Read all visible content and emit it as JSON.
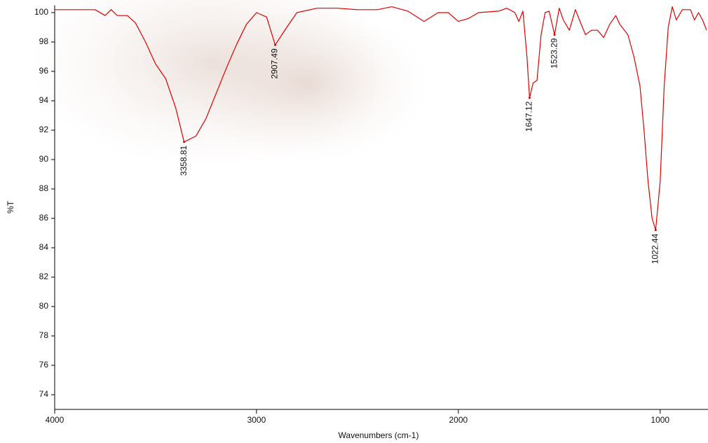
{
  "chart_data": {
    "type": "line",
    "x_label": "Wavenumbers (cm-1)",
    "y_label": "%T",
    "color": "#e00000",
    "x": [
      4000,
      3900,
      3800,
      3750,
      3720,
      3690,
      3640,
      3600,
      3550,
      3500,
      3450,
      3400,
      3358.81,
      3300,
      3250,
      3200,
      3150,
      3100,
      3050,
      3000,
      2950,
      2907.49,
      2850,
      2800,
      2700,
      2600,
      2500,
      2400,
      2330,
      2250,
      2170,
      2100,
      2050,
      2000,
      1950,
      1900,
      1800,
      1760,
      1720,
      1700,
      1680,
      1660,
      1647.12,
      1630,
      1610,
      1590,
      1570,
      1550,
      1523.29,
      1500,
      1480,
      1450,
      1420,
      1400,
      1370,
      1340,
      1310,
      1280,
      1250,
      1220,
      1200,
      1160,
      1130,
      1100,
      1080,
      1060,
      1040,
      1022.44,
      1000,
      980,
      960,
      940,
      920,
      890,
      850,
      830,
      810,
      790,
      770
    ],
    "values": [
      100.2,
      100.2,
      100.2,
      99.8,
      100.2,
      99.8,
      99.8,
      99.3,
      98.0,
      96.5,
      95.5,
      93.5,
      91.2,
      91.6,
      92.8,
      94.5,
      96.2,
      97.8,
      99.2,
      100.0,
      99.7,
      97.8,
      99.0,
      100.0,
      100.3,
      100.3,
      100.2,
      100.2,
      100.4,
      100.1,
      99.4,
      100.0,
      100.0,
      99.4,
      99.6,
      100.0,
      100.1,
      100.3,
      100.0,
      99.4,
      100.1,
      97.0,
      94.2,
      95.2,
      95.4,
      98.5,
      100.0,
      100.1,
      98.5,
      100.3,
      99.5,
      98.8,
      100.2,
      99.5,
      98.5,
      98.8,
      98.8,
      98.3,
      99.2,
      99.8,
      99.2,
      98.5,
      97.0,
      95.0,
      92.0,
      88.5,
      86.0,
      85.2,
      88.5,
      95.0,
      99.0,
      100.4,
      99.5,
      100.2,
      100.2,
      99.5,
      100.0,
      99.5,
      98.8
    ],
    "peaks": [
      {
        "x": 3358.81,
        "y": 91.2
      },
      {
        "x": 2907.49,
        "y": 97.8
      },
      {
        "x": 1647.12,
        "y": 94.2
      },
      {
        "x": 1523.29,
        "y": 98.5
      },
      {
        "x": 1022.44,
        "y": 85.2
      }
    ],
    "xlim": [
      4000,
      763
    ],
    "ylim": [
      73,
      100.5
    ],
    "xticks": [
      4000,
      3000,
      2000,
      1000
    ],
    "yticks": [
      74,
      76,
      78,
      80,
      82,
      84,
      86,
      88,
      90,
      92,
      94,
      96,
      98,
      100
    ]
  }
}
